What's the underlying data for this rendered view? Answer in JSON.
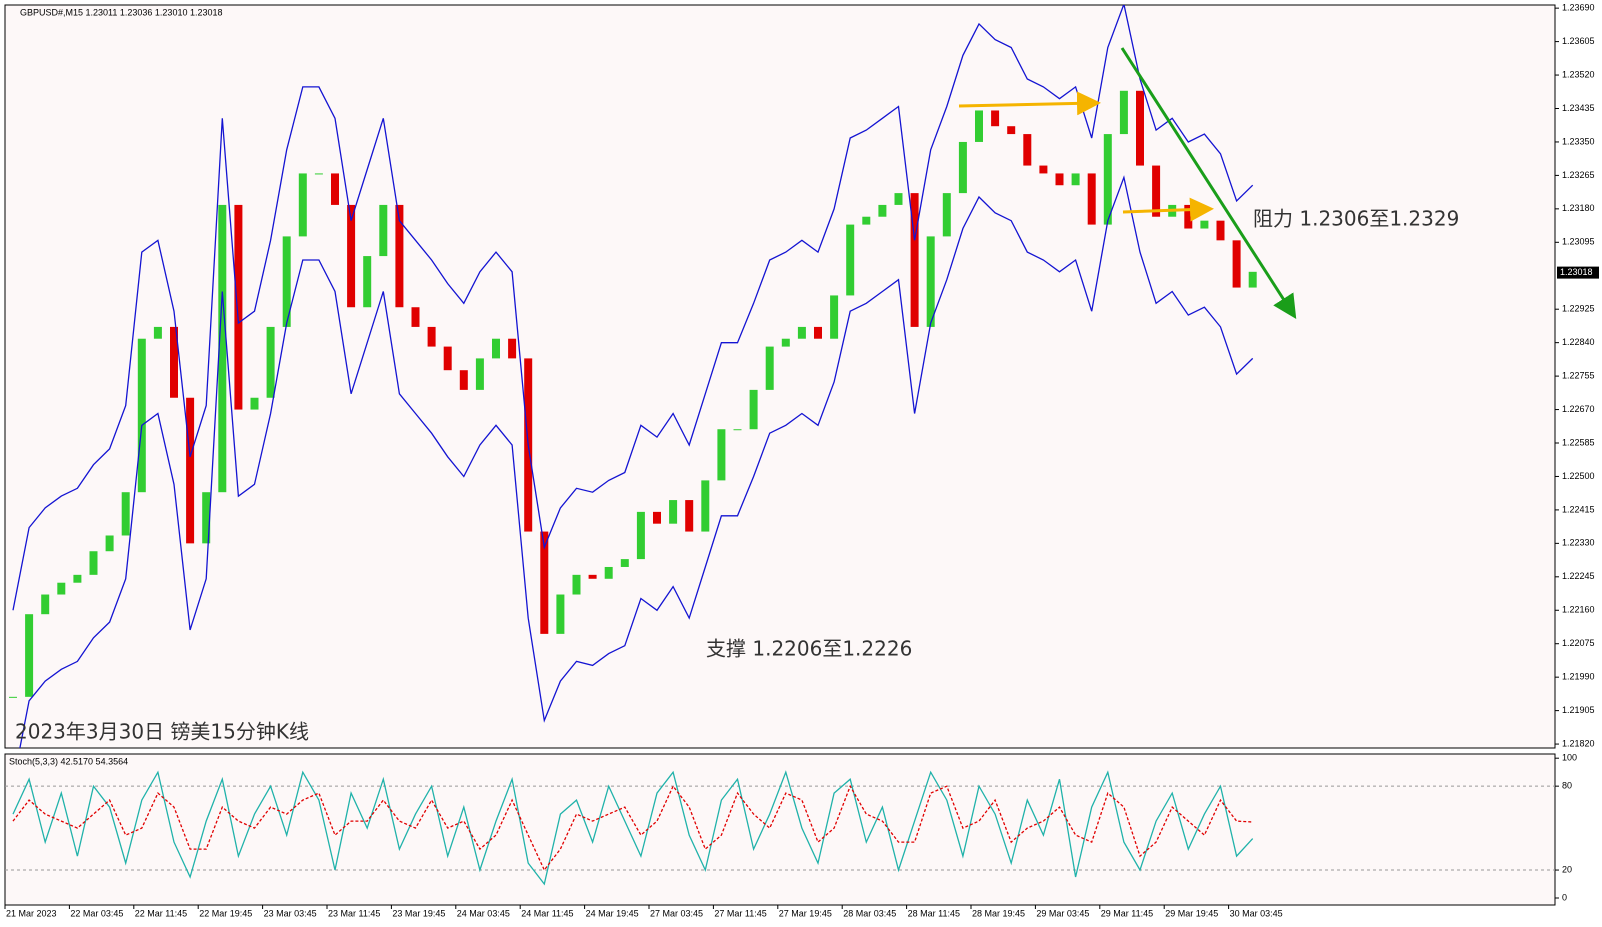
{
  "chart_data": [
    {
      "type": "line",
      "title": "GBPUSD#,M15  1.23011 1.23036 1.23010 1.23018",
      "annotations": [
        "2023年3月30日 镑美15分钟K线",
        "支撑 1.2206至1.2226",
        "阻力 1.2306至1.2329"
      ],
      "categories": [
        "21 Mar 2023",
        null,
        null,
        null,
        "22 Mar 03:45",
        null,
        null,
        null,
        "22 Mar 11:45",
        null,
        null,
        null,
        "22 Mar 19:45",
        null,
        null,
        null,
        "23 Mar 03:45",
        null,
        null,
        null,
        "23 Mar 11:45",
        null,
        null,
        null,
        "23 Mar 19:45",
        null,
        null,
        null,
        "24 Mar 03:45",
        null,
        null,
        null,
        "24 Mar 11:45",
        null,
        null,
        null,
        "24 Mar 19:45",
        null,
        null,
        null,
        "27 Mar 03:45",
        null,
        null,
        null,
        "27 Mar 11:45",
        null,
        null,
        null,
        "27 Mar 19:45",
        null,
        null,
        null,
        "28 Mar 03:45",
        null,
        null,
        null,
        "28 Mar 11:45",
        null,
        null,
        null,
        "28 Mar 19:45",
        null,
        null,
        null,
        "29 Mar 03:45",
        null,
        null,
        null,
        "29 Mar 11:45",
        null,
        null,
        null,
        "29 Mar 19:45",
        null,
        null,
        null,
        "30 Mar 03:45",
        null
      ],
      "price": {
        "up_color": "#32cd32",
        "down_color": "#e00000",
        "values": [
          1.2194,
          1.2215,
          1.222,
          1.2223,
          1.2225,
          1.2231,
          1.2235,
          1.2246,
          1.2285,
          1.2288,
          1.227,
          1.2233,
          1.2246,
          1.2319,
          1.2267,
          1.227,
          1.2288,
          1.2311,
          1.2327,
          1.2327,
          1.2319,
          1.2293,
          1.2306,
          1.2319,
          1.2293,
          1.2288,
          1.2283,
          1.2277,
          1.2272,
          1.228,
          1.2285,
          1.228,
          1.2236,
          1.221,
          1.222,
          1.2225,
          1.2224,
          1.2227,
          1.2229,
          1.2241,
          1.2238,
          1.2244,
          1.2236,
          1.2249,
          1.2262,
          1.2262,
          1.2272,
          1.2283,
          1.2285,
          1.2288,
          1.2285,
          1.2296,
          1.2314,
          1.2316,
          1.2319,
          1.2322,
          1.2288,
          1.2311,
          1.2322,
          1.2335,
          1.2343,
          1.2339,
          1.2337,
          1.2329,
          1.2327,
          1.2324,
          1.2327,
          1.2314,
          1.2337,
          1.2348,
          1.2329,
          1.2316,
          1.2319,
          1.2313,
          1.2315,
          1.231,
          1.2298,
          1.2302
        ]
      },
      "series": [
        {
          "color": "#1414d2",
          "values": [
            1.2216,
            1.2237,
            1.2242,
            1.2245,
            1.2247,
            1.2253,
            1.2257,
            1.2268,
            1.2307,
            1.231,
            1.2292,
            1.2255,
            1.2268,
            1.2341,
            1.2289,
            1.2292,
            1.231,
            1.2333,
            1.2349,
            1.2349,
            1.2341,
            1.2315,
            1.2328,
            1.2341,
            1.2315,
            1.231,
            1.2305,
            1.2299,
            1.2294,
            1.2302,
            1.2307,
            1.2302,
            1.2258,
            1.2232,
            1.2242,
            1.2247,
            1.2246,
            1.2249,
            1.2251,
            1.2263,
            1.226,
            1.2266,
            1.2258,
            1.2271,
            1.2284,
            1.2284,
            1.2294,
            1.2305,
            1.2307,
            1.231,
            1.2307,
            1.2318,
            1.2336,
            1.2338,
            1.2341,
            1.2344,
            1.231,
            1.2333,
            1.2344,
            1.2357,
            1.2365,
            1.2361,
            1.2359,
            1.2351,
            1.2349,
            1.2346,
            1.2349,
            1.2336,
            1.2359,
            1.237,
            1.2351,
            1.2338,
            1.2341,
            1.2335,
            1.2337,
            1.2332,
            1.232,
            1.2324
          ]
        },
        {
          "color": "#1414d2",
          "values": [
            1.2172,
            1.2193,
            1.2198,
            1.2201,
            1.2203,
            1.2209,
            1.2213,
            1.2224,
            1.2263,
            1.2266,
            1.2248,
            1.2211,
            1.2224,
            1.2297,
            1.2245,
            1.2248,
            1.2266,
            1.2289,
            1.2305,
            1.2305,
            1.2297,
            1.2271,
            1.2284,
            1.2297,
            1.2271,
            1.2266,
            1.2261,
            1.2255,
            1.225,
            1.2258,
            1.2263,
            1.2258,
            1.2214,
            1.2188,
            1.2198,
            1.2203,
            1.2202,
            1.2205,
            1.2207,
            1.2219,
            1.2216,
            1.2222,
            1.2214,
            1.2227,
            1.224,
            1.224,
            1.225,
            1.2261,
            1.2263,
            1.2266,
            1.2263,
            1.2274,
            1.2292,
            1.2294,
            1.2297,
            1.23,
            1.2266,
            1.2289,
            1.23,
            1.2313,
            1.2321,
            1.2317,
            1.2315,
            1.2307,
            1.2305,
            1.2302,
            1.2305,
            1.2292,
            1.2315,
            1.2326,
            1.2307,
            1.2294,
            1.2297,
            1.2291,
            1.2293,
            1.2288,
            1.2276,
            1.228
          ]
        }
      ],
      "ylim": [
        1.2181,
        1.23698
      ],
      "yticks": [
        {
          "value": 1.2369,
          "label": "1.23690"
        },
        1.23605,
        {
          "value": 1.2352,
          "label": "1.23520"
        },
        1.23435,
        {
          "value": 1.2335,
          "label": "1.23350"
        },
        1.23265,
        {
          "value": 1.2318,
          "label": "1.23180"
        },
        1.23095,
        1.22925,
        {
          "value": 1.2284,
          "label": "1.22840"
        },
        1.22755,
        {
          "value": 1.2267,
          "label": "1.22670"
        },
        1.22585,
        {
          "value": 1.225,
          "label": "1.22500"
        },
        1.22415,
        {
          "value": 1.2233,
          "label": "1.22330"
        },
        1.22245,
        {
          "value": 1.2216,
          "label": "1.22160"
        },
        1.22075,
        {
          "value": 1.2199,
          "label": "1.21990"
        },
        1.21905,
        {
          "value": 1.2182,
          "label": "1.21820"
        }
      ],
      "last_price": {
        "value": 1.23018,
        "label": "1.23018"
      }
    },
    {
      "type": "line",
      "title": "Stoch(5,3,3) 42.5170 54.3564",
      "series": [
        {
          "color": "#20b2aa",
          "values": [
            60,
            85,
            40,
            75,
            30,
            80,
            65,
            25,
            70,
            90,
            40,
            15,
            55,
            85,
            30,
            60,
            80,
            45,
            90,
            70,
            20,
            75,
            50,
            85,
            35,
            60,
            80,
            30,
            65,
            20,
            55,
            85,
            25,
            10,
            60,
            70,
            40,
            80,
            55,
            30,
            75,
            90,
            45,
            20,
            70,
            85,
            35,
            60,
            90,
            50,
            25,
            75,
            85,
            40,
            65,
            20,
            55,
            90,
            70,
            30,
            80,
            60,
            25,
            70,
            45,
            85,
            15,
            65,
            90,
            40,
            20,
            55,
            75,
            35,
            60,
            80,
            30,
            42.517
          ]
        },
        {
          "color": "#e00000",
          "dashed": true,
          "values": [
            55,
            70,
            60,
            55,
            50,
            60,
            70,
            45,
            50,
            75,
            65,
            35,
            35,
            65,
            55,
            50,
            65,
            60,
            70,
            75,
            45,
            55,
            55,
            70,
            55,
            50,
            70,
            50,
            55,
            35,
            45,
            70,
            45,
            20,
            35,
            60,
            55,
            60,
            65,
            45,
            55,
            80,
            65,
            35,
            45,
            75,
            60,
            50,
            75,
            70,
            40,
            50,
            80,
            60,
            55,
            40,
            40,
            75,
            80,
            50,
            55,
            70,
            40,
            50,
            55,
            65,
            45,
            40,
            75,
            65,
            30,
            40,
            65,
            55,
            45,
            70,
            55,
            54.3564
          ]
        }
      ],
      "ylim": [
        -5,
        103
      ],
      "yticks": [
        100,
        80,
        20,
        0
      ],
      "levels": [
        80,
        20
      ]
    }
  ]
}
